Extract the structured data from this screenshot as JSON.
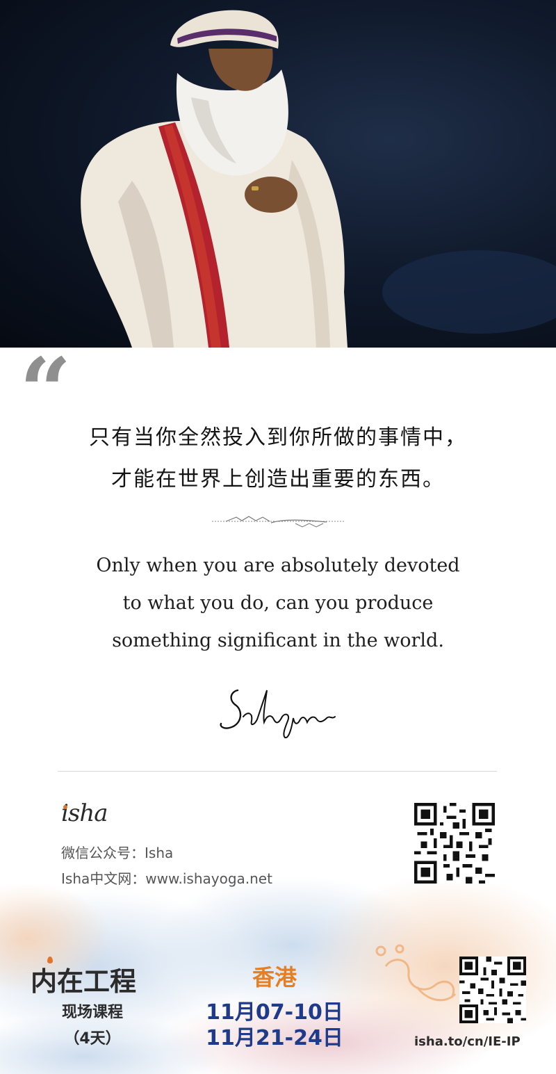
{
  "photo": {
    "alt": "Sadhguru portrait",
    "background": "#0b1220"
  },
  "quote": {
    "zh_line1": "只有当你全然投入到你所做的事情中，",
    "zh_line2": "才能在世界上创造出重要的东西。",
    "en_line1": "Only when you are absolutely devoted",
    "en_line2": "to what you do, can you produce",
    "en_line3": "something significant in the world.",
    "signature": "Sadhguru"
  },
  "footer": {
    "logo": "isha",
    "wechat_label": "微信公众号：",
    "wechat_value": "Isha",
    "site_label": "Isha中文网：",
    "site_value": "www.ishayoga.net"
  },
  "program": {
    "title": "内在工程",
    "subtitle": "现场课程",
    "duration": "（4天）",
    "city": "香港",
    "date1": "11月07-10日",
    "date2": "11月21-24日",
    "url": "isha.to/cn/IE-IP"
  },
  "colors": {
    "orange": "#e67e22",
    "navy": "#1e3a8a",
    "text": "#141414"
  }
}
